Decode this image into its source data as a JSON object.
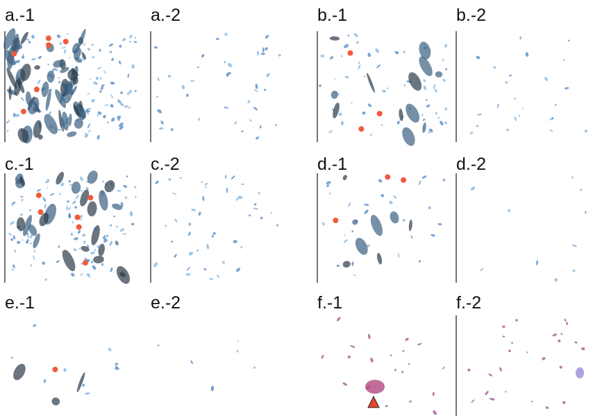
{
  "panels": [
    {
      "label": "a.-1"
    },
    {
      "label": "a.-2"
    },
    {
      "label": "b.-1"
    },
    {
      "label": "b.-2"
    },
    {
      "label": "c.-1"
    },
    {
      "label": "c.-2"
    },
    {
      "label": "d.-1"
    },
    {
      "label": "d.-2"
    },
    {
      "label": "e.-1"
    },
    {
      "label": "e.-2"
    },
    {
      "label": "f.-1"
    },
    {
      "label": "f.-2"
    }
  ]
}
